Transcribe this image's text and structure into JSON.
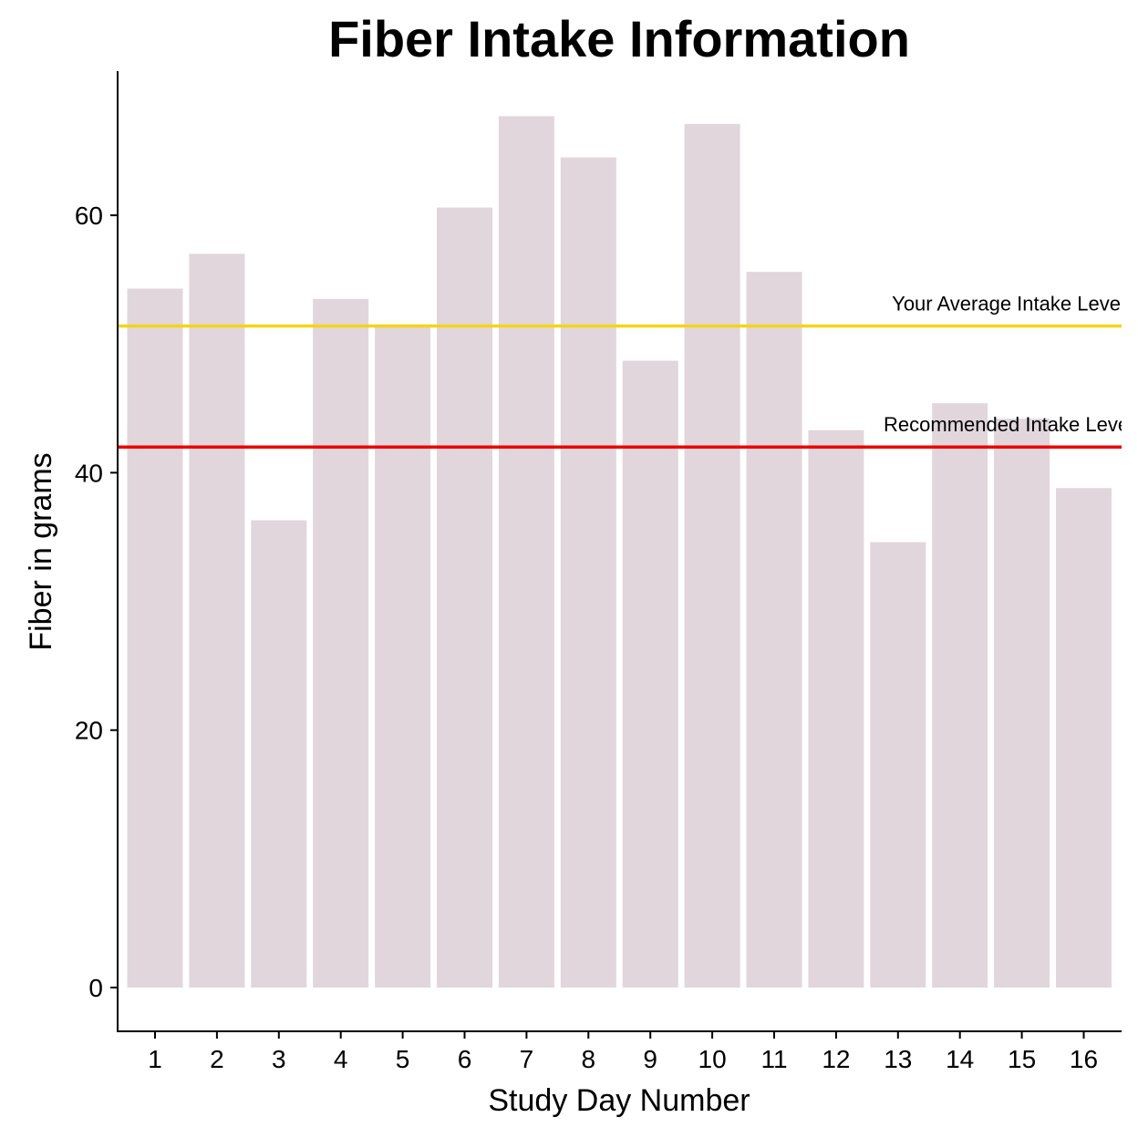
{
  "chart_data": {
    "type": "bar",
    "title": "Fiber Intake Information",
    "xlabel": "Study Day Number",
    "ylabel": "Fiber in grams",
    "categories": [
      "1",
      "2",
      "3",
      "4",
      "5",
      "6",
      "7",
      "8",
      "9",
      "10",
      "11",
      "12",
      "13",
      "14",
      "15",
      "16"
    ],
    "values": [
      54.3,
      57.0,
      36.3,
      53.5,
      51.3,
      60.6,
      67.7,
      64.5,
      48.7,
      67.1,
      55.6,
      43.3,
      34.6,
      45.4,
      44.2,
      38.8
    ],
    "y_ticks": [
      0,
      20,
      40,
      60
    ],
    "ylim": [
      -3.4,
      71.2
    ],
    "bar_color": "#e0d6dc",
    "grid": false,
    "reference_lines": [
      {
        "label": "Your Average Intake Level",
        "value": 51.4,
        "color": "#f5d31a"
      },
      {
        "label": "Recommended Intake Level",
        "value": 42.0,
        "color": "#ee0000"
      }
    ]
  }
}
